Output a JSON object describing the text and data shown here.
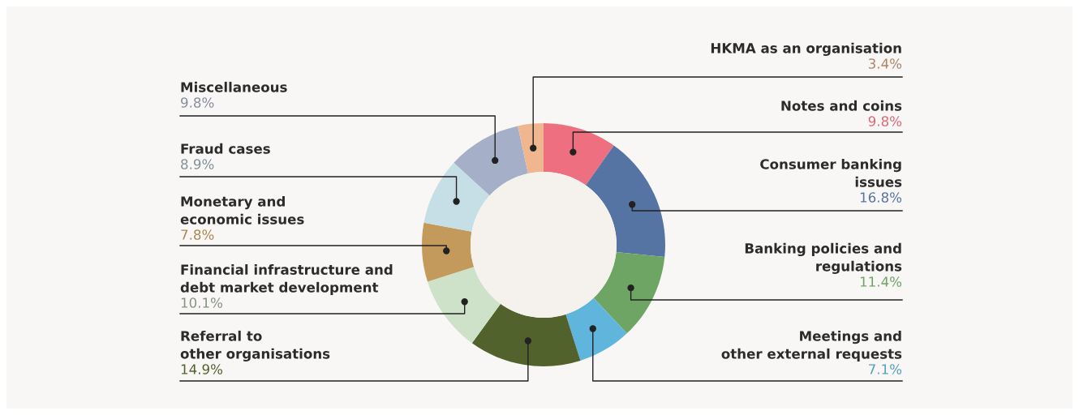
{
  "chart_data": {
    "type": "donut",
    "categories": [
      "Notes and coins",
      "Consumer banking\nissues",
      "Banking policies and\nregulations",
      "Meetings and\nother external requests",
      "Referral to\nother organisations",
      "Financial infrastructure and\ndebt market development",
      "Monetary and\neconomic issues",
      "Fraud cases",
      "Miscellaneous",
      "HKMA as an organisation"
    ],
    "values": [
      9.8,
      16.8,
      11.4,
      7.1,
      14.9,
      10.1,
      7.8,
      8.9,
      9.8,
      3.4
    ],
    "value_labels": [
      "9.8%",
      "16.8%",
      "11.4%",
      "7.1%",
      "14.9%",
      "10.1%",
      "7.8%",
      "8.9%",
      "9.8%",
      "3.4%"
    ],
    "colors": [
      "#ee6f80",
      "#5573a3",
      "#6ea565",
      "#5fb5dc",
      "#52622c",
      "#cde2c8",
      "#c49a5c",
      "#c6dfe6",
      "#a6afc8",
      "#f0b68f"
    ]
  }
}
